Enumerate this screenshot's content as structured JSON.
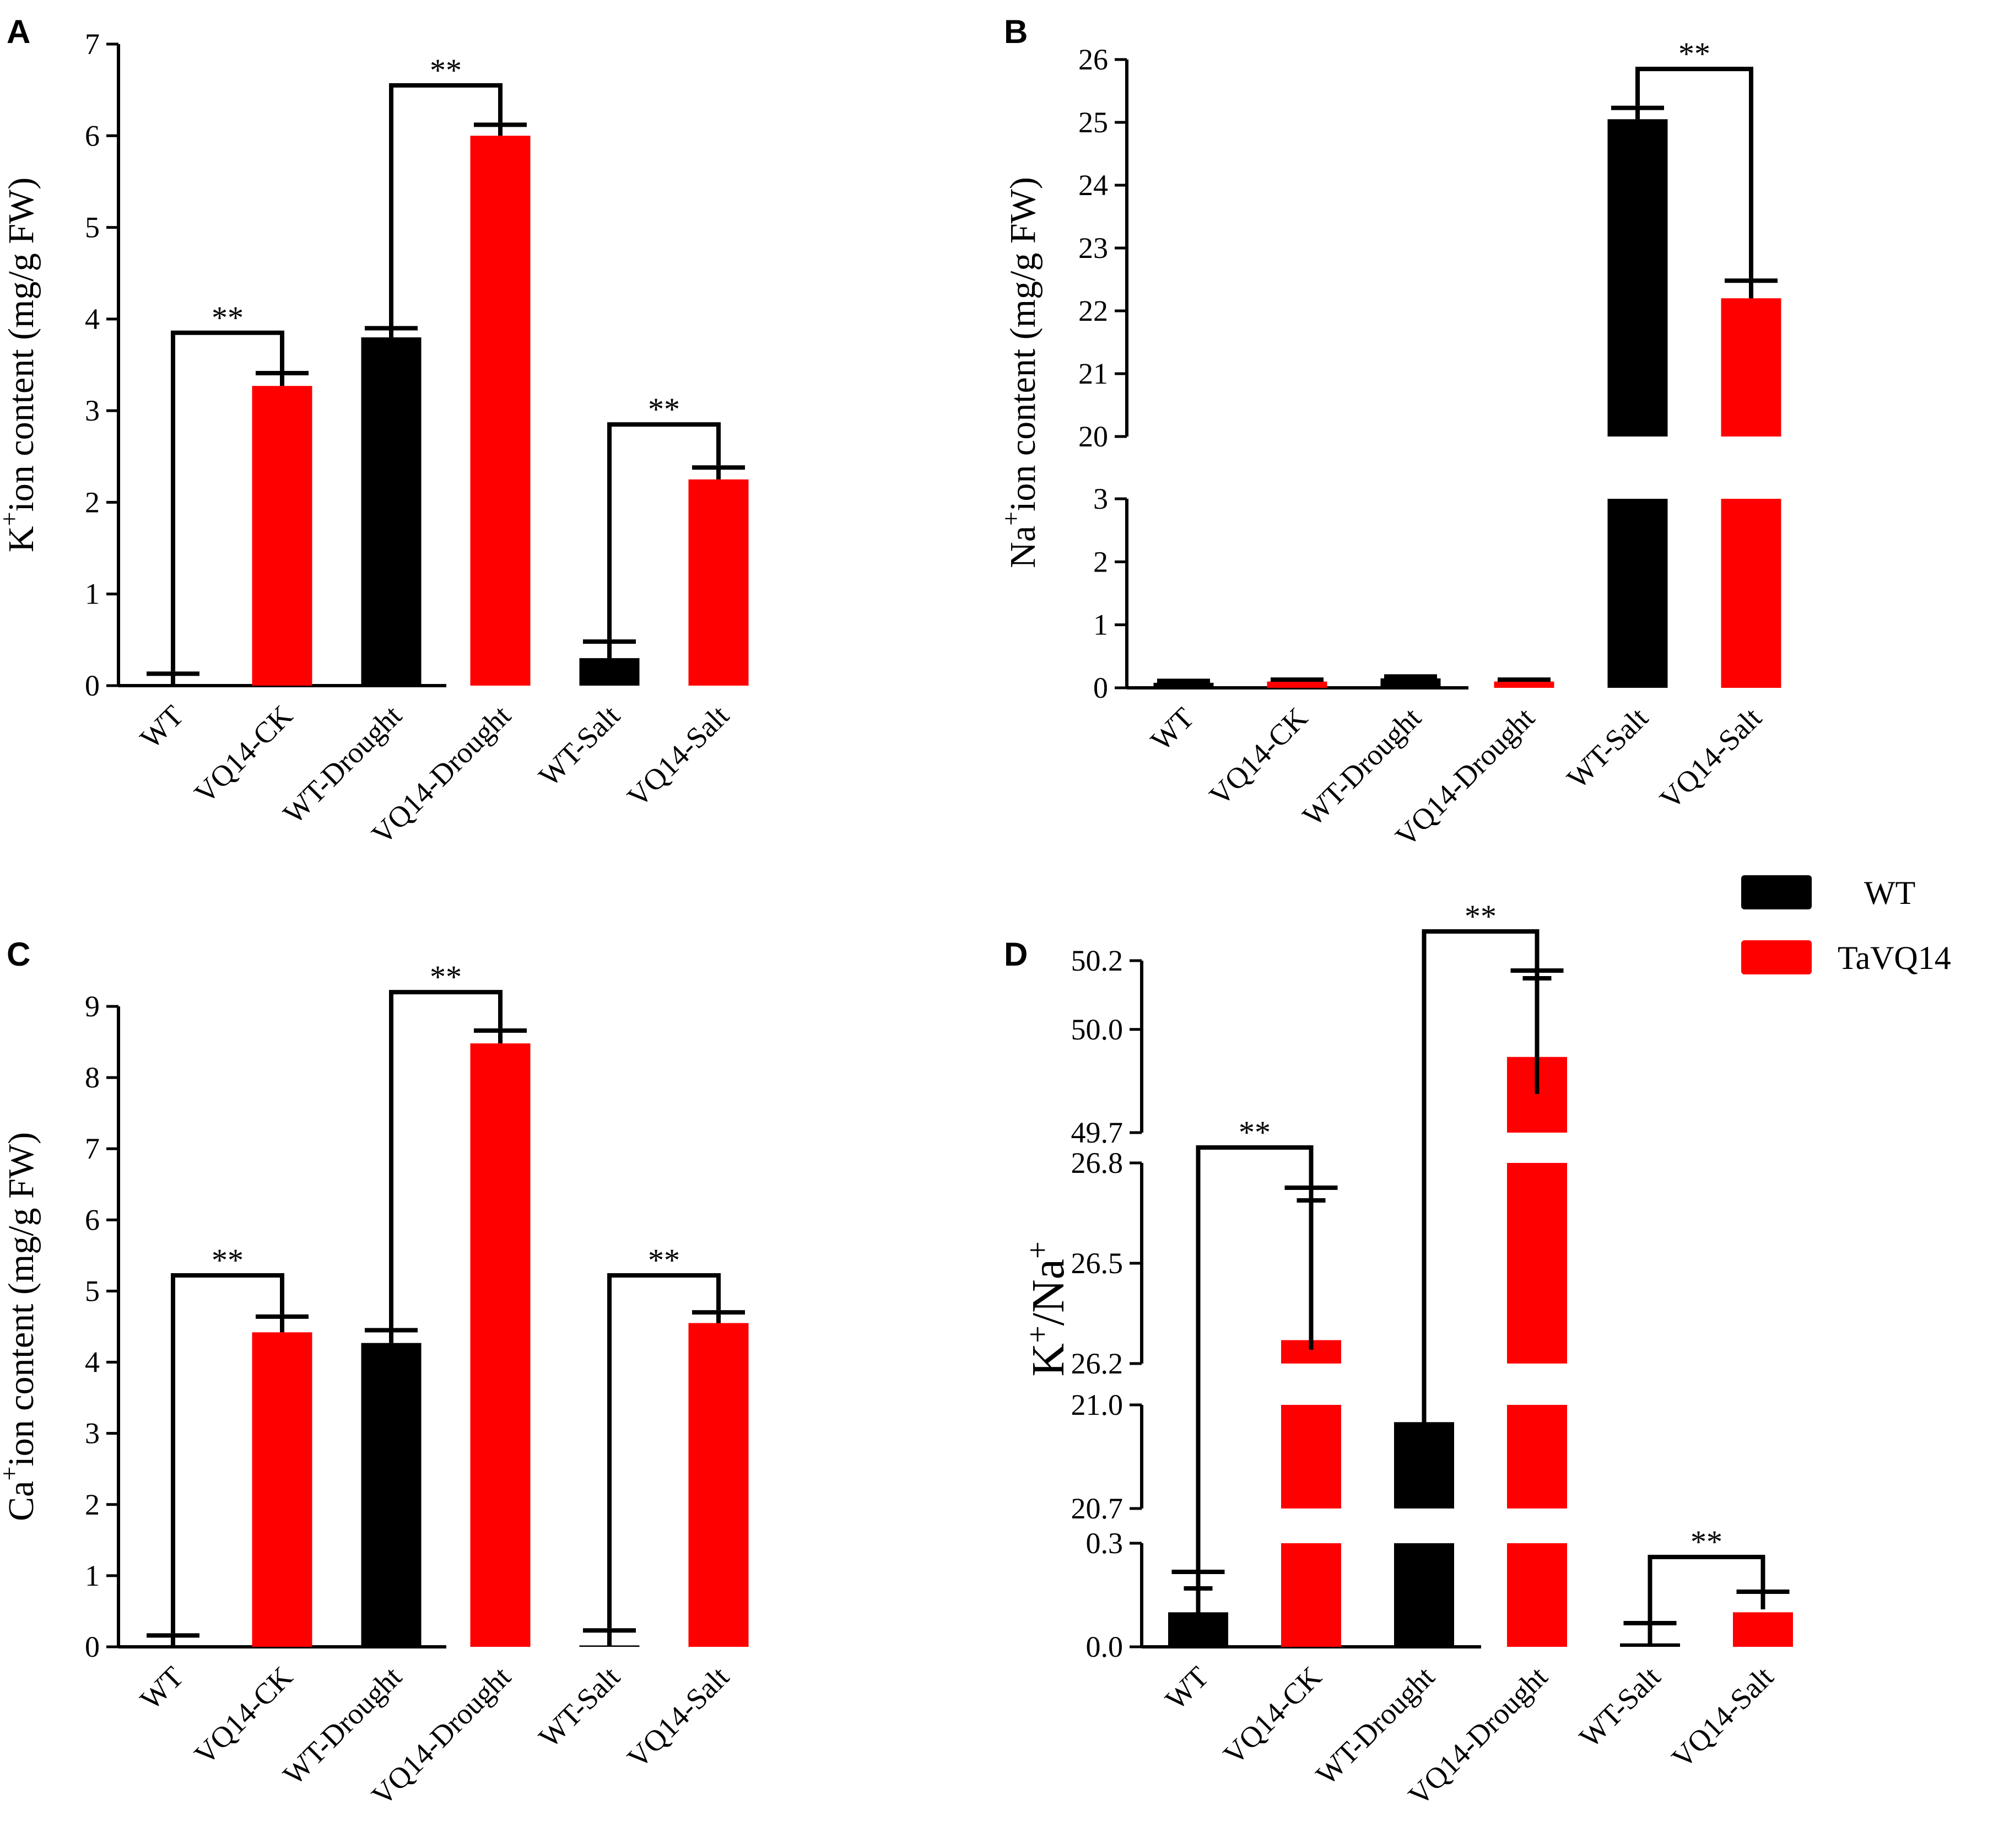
{
  "colors": {
    "wt": "#000000",
    "vq14": "#ff0000"
  },
  "legend": [
    {
      "name": "WT",
      "color": "#000000"
    },
    {
      "name": "TaVQ14",
      "color": "#ff0000"
    }
  ],
  "chart_data": [
    {
      "panel": "A",
      "type": "bar",
      "ylabel_main": "K",
      "ylabel_sup": "+",
      "ylabel_rest": "ion content (mg/g FW)",
      "categories": [
        "WT",
        "VQ14-CK",
        "WT-Drought",
        "VQ14-Drought",
        "WT-Salt",
        "VQ14-Salt"
      ],
      "values": [
        0.0,
        3.27,
        3.8,
        6.0,
        0.3,
        2.25
      ],
      "errors": [
        0.13,
        0.14,
        0.1,
        0.12,
        0.18,
        0.13
      ],
      "ylim": [
        0,
        7
      ],
      "yticks": [
        "0",
        "1",
        "2",
        "3",
        "4",
        "5",
        "6",
        "7"
      ],
      "significance": [
        {
          "from": 0,
          "to": 1,
          "label": "**",
          "level": 3.85
        },
        {
          "from": 2,
          "to": 3,
          "label": "**",
          "level": 6.55
        },
        {
          "from": 4,
          "to": 5,
          "label": "**",
          "level": 2.85
        }
      ]
    },
    {
      "panel": "B",
      "type": "bar",
      "broken_axis": true,
      "ylabel_main": "Na",
      "ylabel_sup": "+",
      "ylabel_rest": "ion content (mg/g FW)",
      "categories": [
        "WT",
        "VQ14-CK",
        "WT-Drought",
        "VQ14-Drought",
        "WT-Salt",
        "VQ14-Salt"
      ],
      "values": [
        0.08,
        0.1,
        0.15,
        0.1,
        25.05,
        22.2
      ],
      "errors": [
        0.03,
        0.03,
        0.03,
        0.03,
        0.18,
        0.28
      ],
      "segments": [
        {
          "range": [
            0,
            3
          ],
          "ticks": [
            "0",
            "1",
            "2",
            "3"
          ]
        },
        {
          "range": [
            20,
            26
          ],
          "ticks": [
            "20",
            "21",
            "22",
            "23",
            "24",
            "25",
            "26"
          ]
        }
      ],
      "significance": [
        {
          "from": 4,
          "to": 5,
          "label": "**",
          "level": 25.85
        }
      ]
    },
    {
      "panel": "C",
      "type": "bar",
      "ylabel_main": "Ca",
      "ylabel_sup": "+",
      "ylabel_rest": "ion content (mg/g FW)",
      "categories": [
        "WT",
        "VQ14-CK",
        "WT-Drought",
        "VQ14-Drought",
        "WT-Salt",
        "VQ14-Salt"
      ],
      "values": [
        0.0,
        4.42,
        4.27,
        8.48,
        0.02,
        4.55
      ],
      "errors": [
        0.16,
        0.22,
        0.18,
        0.18,
        0.21,
        0.15
      ],
      "ylim": [
        0,
        9
      ],
      "yticks": [
        "0",
        "1",
        "2",
        "3",
        "4",
        "5",
        "6",
        "7",
        "8",
        "9"
      ],
      "significance": [
        {
          "from": 0,
          "to": 1,
          "label": "**",
          "level": 5.22
        },
        {
          "from": 2,
          "to": 3,
          "label": "**",
          "level": 9.2
        },
        {
          "from": 4,
          "to": 5,
          "label": "**",
          "level": 5.22
        }
      ]
    },
    {
      "panel": "D",
      "type": "bar",
      "broken_axis": true,
      "ylabel_main": "K",
      "ylabel_sup": "+",
      "ylabel_mid": "/Na",
      "ylabel_sup2": "+",
      "categories": [
        "WT",
        "VQ14-CK",
        "WT-Drought",
        "VQ14-Drought",
        "WT-Salt",
        "VQ14-Salt"
      ],
      "values": [
        0.1,
        26.27,
        20.95,
        49.92,
        0.01,
        0.1
      ],
      "errors": [
        0.11,
        0.42,
        0.06,
        0.23,
        0.04,
        0.04
      ],
      "segments": [
        {
          "range": [
            0.0,
            0.3
          ],
          "ticks": [
            "0.0",
            "0.3"
          ]
        },
        {
          "range": [
            20.7,
            21.0
          ],
          "ticks": [
            "20.7",
            "21.0"
          ]
        },
        {
          "range": [
            26.2,
            26.8
          ],
          "ticks": [
            "26.2",
            "26.5",
            "26.8"
          ]
        },
        {
          "range": [
            49.7,
            50.2
          ],
          "ticks": [
            "49.7",
            "50.0",
            "50.2"
          ]
        }
      ],
      "significance": [
        {
          "from": 0,
          "to": 1,
          "label": "**"
        },
        {
          "from": 2,
          "to": 3,
          "label": "**"
        },
        {
          "from": 4,
          "to": 5,
          "label": "**"
        }
      ]
    }
  ]
}
